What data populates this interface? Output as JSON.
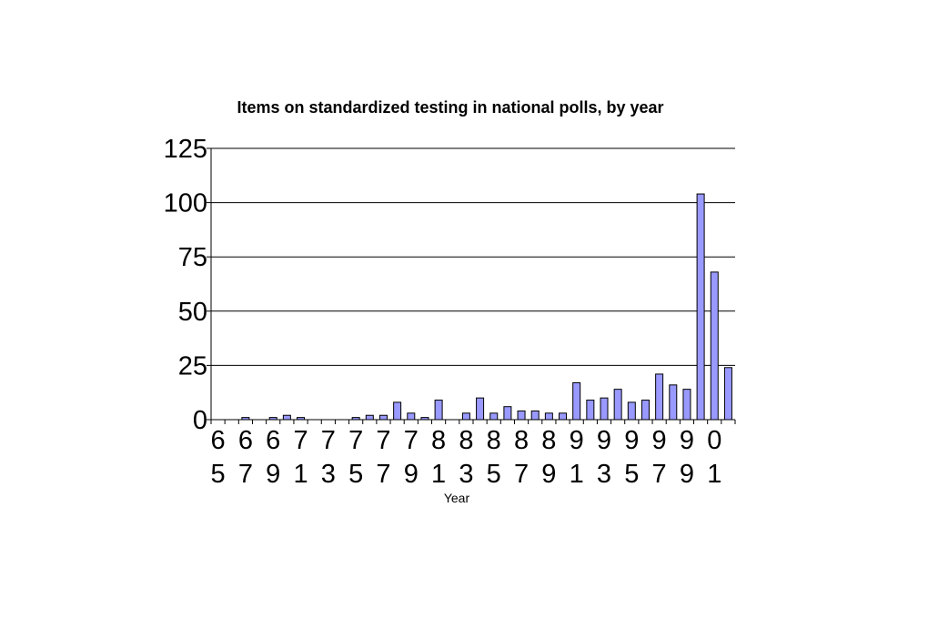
{
  "chart_data": {
    "type": "bar",
    "title": "Items on standardized testing in national polls, by year",
    "xlabel": "Year",
    "ylabel": "",
    "ylim": [
      0,
      125
    ],
    "yticks": [
      "0",
      "25",
      "50",
      "75",
      "100",
      "125"
    ],
    "grid": "horizontal",
    "legend": "none",
    "bar_color": "#9999ff",
    "categories": [
      "1965",
      "1966",
      "1967",
      "1968",
      "1969",
      "1970",
      "1971",
      "1972",
      "1973",
      "1974",
      "1975",
      "1976",
      "1977",
      "1978",
      "1979",
      "1980",
      "1981",
      "1982",
      "1983",
      "1984",
      "1985",
      "1986",
      "1987",
      "1988",
      "1989",
      "1990",
      "1991",
      "1992",
      "1993",
      "1994",
      "1995",
      "1996",
      "1997",
      "1998",
      "1999",
      "2000",
      "2001",
      "2002"
    ],
    "values": [
      0,
      0,
      1,
      0,
      1,
      2,
      1,
      0,
      0,
      0,
      1,
      2,
      2,
      8,
      3,
      1,
      9,
      0,
      3,
      10,
      3,
      6,
      4,
      4,
      3,
      3,
      17,
      9,
      10,
      14,
      8,
      9,
      21,
      16,
      14,
      104,
      68,
      24
    ],
    "tick_labels": [
      {
        "category": "1965",
        "line1": "6",
        "line2": "5"
      },
      {
        "category": "1967",
        "line1": "6",
        "line2": "7"
      },
      {
        "category": "1969",
        "line1": "6",
        "line2": "9"
      },
      {
        "category": "1971",
        "line1": "7",
        "line2": "1"
      },
      {
        "category": "1973",
        "line1": "7",
        "line2": "3"
      },
      {
        "category": "1975",
        "line1": "7",
        "line2": "5"
      },
      {
        "category": "1977",
        "line1": "7",
        "line2": "7"
      },
      {
        "category": "1979",
        "line1": "7",
        "line2": "9"
      },
      {
        "category": "1981",
        "line1": "8",
        "line2": "1"
      },
      {
        "category": "1983",
        "line1": "8",
        "line2": "3"
      },
      {
        "category": "1985",
        "line1": "8",
        "line2": "5"
      },
      {
        "category": "1987",
        "line1": "8",
        "line2": "7"
      },
      {
        "category": "1989",
        "line1": "8",
        "line2": "9"
      },
      {
        "category": "1991",
        "line1": "9",
        "line2": "1"
      },
      {
        "category": "1993",
        "line1": "9",
        "line2": "3"
      },
      {
        "category": "1995",
        "line1": "9",
        "line2": "5"
      },
      {
        "category": "1997",
        "line1": "9",
        "line2": "7"
      },
      {
        "category": "1999",
        "line1": "9",
        "line2": "9"
      },
      {
        "category": "2001",
        "line1": "0",
        "line2": "1"
      }
    ]
  }
}
